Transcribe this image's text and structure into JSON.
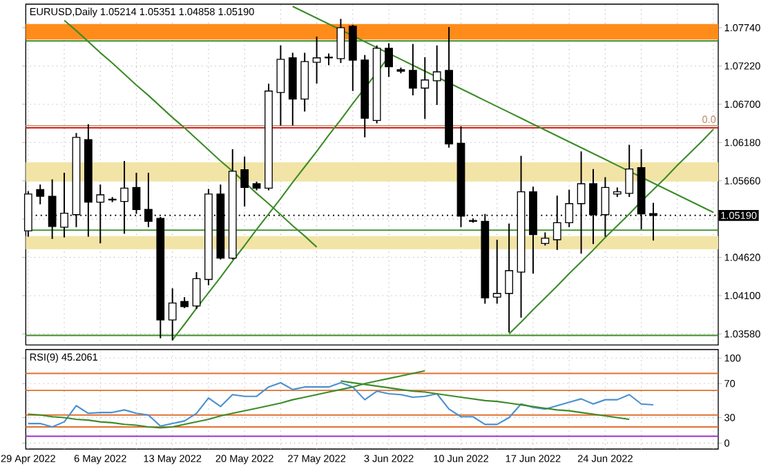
{
  "chart_data": [
    {
      "type": "candlestick",
      "title": "EURUSD,Daily 1.05214 1.05351 1.04858 1.05190",
      "categories": [
        null,
        null,
        null,
        null,
        null,
        null,
        null,
        null,
        null,
        null,
        null,
        null,
        null,
        null,
        null,
        null,
        null,
        null,
        null,
        null,
        null,
        null,
        null,
        null,
        null,
        null,
        null,
        null,
        null,
        null,
        null,
        null,
        null,
        null,
        null,
        null,
        null,
        null,
        null,
        null,
        null,
        null,
        null,
        null,
        null,
        null,
        null,
        null,
        null,
        null,
        null,
        null,
        null,
        null,
        null,
        null,
        null,
        null
      ],
      "ohlc": [
        [
          1.0498,
          1.0551,
          1.0491,
          1.0548
        ],
        [
          1.0554,
          1.056,
          1.0535,
          1.0545
        ],
        [
          1.0545,
          1.0567,
          1.0488,
          1.0504
        ],
        [
          1.0503,
          1.0576,
          1.049,
          1.0522
        ],
        [
          1.052,
          1.063,
          1.0504,
          1.0625
        ],
        [
          1.0622,
          1.0642,
          1.0491,
          1.0537
        ],
        [
          1.0537,
          1.056,
          1.0482,
          1.0547
        ],
        [
          1.054,
          1.0543,
          1.0538,
          1.0541
        ],
        [
          1.0538,
          1.0592,
          1.0495,
          1.0556
        ],
        [
          1.0557,
          1.0576,
          1.0522,
          1.0527
        ],
        [
          1.0527,
          1.0576,
          1.0504,
          1.0511
        ],
        [
          1.0515,
          1.0516,
          1.0353,
          1.0377
        ],
        [
          1.0377,
          1.0419,
          1.035,
          1.04
        ],
        [
          1.0402,
          1.0407,
          1.0394,
          1.0395
        ],
        [
          1.0396,
          1.0441,
          1.0393,
          1.0433
        ],
        [
          1.0432,
          1.0554,
          1.0425,
          1.0548
        ],
        [
          1.0548,
          1.056,
          1.046,
          1.0461
        ],
        [
          1.0461,
          1.0608,
          1.046,
          1.0579
        ],
        [
          1.0581,
          1.0598,
          1.0532,
          1.0557
        ],
        [
          1.0562,
          1.0564,
          1.0554,
          1.0556
        ],
        [
          1.0556,
          1.0697,
          1.0554,
          1.0688
        ],
        [
          1.0686,
          1.0749,
          1.0642,
          1.0731
        ],
        [
          1.0733,
          1.0739,
          1.0642,
          1.0677
        ],
        [
          1.0677,
          1.0739,
          1.0661,
          1.0728
        ],
        [
          1.0727,
          1.0761,
          1.0699,
          1.0733
        ],
        [
          1.0733,
          1.0738,
          1.0724,
          1.0734
        ],
        [
          1.0732,
          1.0785,
          1.0727,
          1.0774
        ],
        [
          1.0776,
          1.0777,
          1.0689,
          1.073
        ],
        [
          1.073,
          1.0736,
          1.0626,
          1.0651
        ],
        [
          1.0648,
          1.0749,
          1.0645,
          1.0746
        ],
        [
          1.0746,
          1.0752,
          1.0708,
          1.0721
        ],
        [
          1.0717,
          1.0719,
          1.0713,
          1.0715
        ],
        [
          1.0716,
          1.0751,
          1.0683,
          1.0692
        ],
        [
          1.0692,
          1.0733,
          1.0651,
          1.0703
        ],
        [
          1.0702,
          1.0749,
          1.067,
          1.0714
        ],
        [
          1.0716,
          1.0774,
          1.0612,
          1.0616
        ],
        [
          1.0617,
          1.0639,
          1.0504,
          1.0518
        ],
        [
          1.0512,
          1.0514,
          1.051,
          1.0511
        ],
        [
          1.0511,
          1.052,
          1.04,
          1.0407
        ],
        [
          1.0408,
          1.0485,
          1.04,
          1.0413
        ],
        [
          1.0413,
          1.0507,
          1.0361,
          1.0444
        ],
        [
          1.0442,
          1.0599,
          1.0381,
          1.0551
        ],
        [
          1.0551,
          1.0557,
          1.0441,
          1.0493
        ],
        [
          1.0481,
          1.0495,
          1.0479,
          1.0488
        ],
        [
          1.0486,
          1.0545,
          1.0473,
          1.0509
        ],
        [
          1.0509,
          1.0553,
          1.0504,
          1.0535
        ],
        [
          1.0535,
          1.0605,
          1.0468,
          1.0562
        ],
        [
          1.0562,
          1.0581,
          1.0481,
          1.052
        ],
        [
          1.052,
          1.057,
          1.0491,
          1.0557
        ],
        [
          1.0548,
          1.0556,
          1.0545,
          1.0551
        ],
        [
          1.0549,
          1.0614,
          1.0545,
          1.0582
        ],
        [
          1.0584,
          1.0608,
          1.0501,
          1.0521
        ],
        [
          1.05214,
          1.05351,
          1.04858,
          1.0519
        ],
        null,
        null,
        null,
        null,
        null
      ],
      "series": [
        {
          "type": "line",
          "color": "#3c8c28",
          "values": [
            null,
            null,
            null,
            1.0784,
            1.077,
            1.0755,
            1.074,
            1.0726,
            1.0711,
            1.0696,
            1.0682,
            1.0667,
            1.0652,
            1.0638,
            1.0623,
            1.0608,
            1.0593,
            1.0579,
            1.0564,
            1.0549,
            1.0535,
            1.052,
            1.0505,
            1.0491,
            1.0476,
            null,
            null,
            null,
            null,
            null,
            null,
            null,
            null,
            null,
            null,
            null,
            null,
            null,
            null,
            null,
            null,
            null,
            null,
            null,
            null,
            null,
            null,
            null,
            null,
            null,
            null,
            null,
            null,
            null,
            null,
            null,
            null,
            null
          ]
        },
        {
          "type": "line",
          "color": "#3c8c28",
          "values": [
            null,
            null,
            null,
            null,
            null,
            null,
            null,
            null,
            null,
            null,
            null,
            null,
            null,
            null,
            null,
            null,
            null,
            null,
            null,
            null,
            null,
            null,
            1.0803,
            1.0795,
            1.0787,
            1.0779,
            1.0771,
            1.0763,
            1.0755,
            1.0747,
            1.0739,
            1.0731,
            1.0723,
            1.0715,
            1.0707,
            1.0699,
            1.0691,
            1.0683,
            1.0675,
            1.0667,
            1.0659,
            1.0651,
            1.0643,
            1.0635,
            1.0627,
            1.0619,
            1.0611,
            1.0603,
            1.0595,
            1.0587,
            1.0579,
            1.0571,
            1.0563,
            1.0555,
            1.0547,
            1.0539,
            1.0531,
            1.0523
          ]
        },
        {
          "type": "line",
          "color": "#3c8c28",
          "values": [
            null,
            null,
            null,
            null,
            null,
            null,
            null,
            null,
            null,
            null,
            null,
            null,
            1.035,
            1.0371,
            1.0393,
            1.0414,
            1.0435,
            1.0457,
            1.0478,
            1.05,
            1.0521,
            1.0542,
            1.0564,
            1.0585,
            1.0606,
            1.0628,
            1.0649,
            1.0671,
            1.0692,
            1.0713,
            1.0735,
            null,
            null,
            null,
            null,
            null,
            null,
            null,
            null,
            null,
            null,
            null,
            null,
            null,
            null,
            null,
            null,
            null,
            null,
            null,
            null,
            null,
            null,
            null,
            null,
            null,
            null,
            null
          ]
        },
        {
          "type": "line",
          "color": "#3c8c28",
          "values": [
            null,
            null,
            null,
            null,
            null,
            null,
            null,
            null,
            null,
            null,
            null,
            null,
            null,
            null,
            null,
            null,
            null,
            null,
            null,
            null,
            null,
            null,
            null,
            null,
            null,
            null,
            null,
            null,
            null,
            null,
            null,
            null,
            null,
            null,
            null,
            null,
            null,
            null,
            null,
            null,
            1.0358,
            1.0374,
            1.0391,
            1.0407,
            1.0423,
            1.044,
            1.0456,
            1.0472,
            1.0489,
            1.0505,
            1.0521,
            1.0538,
            1.0554,
            1.057,
            1.0587,
            1.0603,
            1.0619,
            1.0636
          ]
        }
      ],
      "bands": [
        {
          "axis": "y",
          "from": 1.0758,
          "to": 1.0779,
          "color": "#ff8c1a"
        },
        {
          "axis": "y",
          "from": 1.0565,
          "to": 1.0591,
          "color": "#f2e4a6"
        },
        {
          "axis": "y",
          "from": 1.0473,
          "to": 1.0491,
          "color": "#f2e4a6"
        }
      ],
      "ref_lines": [
        {
          "axis": "y",
          "value": 1.0756,
          "color": "#3c8c28"
        },
        {
          "axis": "y",
          "value": 1.0641,
          "color": "#c8a080"
        },
        {
          "axis": "y",
          "value": 1.0638,
          "color": "#d02020"
        },
        {
          "axis": "y",
          "value": 1.0499,
          "color": "#3c8c28"
        },
        {
          "axis": "y",
          "value": 1.0356,
          "color": "#3c8c28"
        },
        {
          "axis": "y",
          "value": 1.0519,
          "color": "#000000",
          "line_style": "dotted",
          "label": "1.05190"
        }
      ],
      "annotations": [
        "0.0"
      ],
      "ylim": [
        1.0343,
        1.0806
      ],
      "yticks": [
        {
          "value": 1.0774,
          "label": "1.07740"
        },
        {
          "value": 1.0722,
          "label": "1.07220"
        },
        {
          "value": 1.067,
          "label": "1.06700"
        },
        {
          "value": 1.0618,
          "label": "1.06180"
        },
        {
          "value": 1.0566,
          "label": "1.05660"
        },
        {
          "value": 1.0514,
          "label": null
        },
        {
          "value": 1.0462,
          "label": "1.04620"
        },
        {
          "value": 1.041,
          "label": "1.04100"
        },
        {
          "value": 1.0358,
          "label": "1.03580"
        }
      ],
      "tick_labels": "y",
      "grid": true
    },
    {
      "type": "line",
      "title": "RSI(9) 45.2061",
      "categories": [
        "29 Apr 2022",
        null,
        null,
        null,
        null,
        null,
        "6 May 2022",
        null,
        null,
        null,
        null,
        null,
        "13 May 2022",
        null,
        null,
        null,
        null,
        null,
        "20 May 2022",
        null,
        null,
        null,
        null,
        null,
        "27 May 2022",
        null,
        null,
        null,
        null,
        null,
        "3 Jun 2022",
        null,
        null,
        null,
        null,
        null,
        "10 Jun 2022",
        null,
        null,
        null,
        null,
        null,
        "17 Jun 2022",
        null,
        null,
        null,
        null,
        null,
        "24 Jun 2022",
        null,
        null,
        null,
        null,
        null,
        null,
        null,
        null,
        null
      ],
      "series": [
        {
          "color": "#4a90d0",
          "values": [
            23,
            23,
            19,
            25,
            44,
            35,
            36,
            36,
            39,
            35,
            33,
            20,
            23,
            26,
            35,
            53,
            43,
            57,
            55,
            55,
            66,
            71,
            63,
            66,
            66,
            66,
            71,
            66,
            51,
            61,
            58,
            57,
            54,
            55,
            58,
            40,
            31,
            31,
            22,
            22,
            30,
            46,
            42,
            40,
            44,
            48,
            52,
            46,
            51,
            51,
            57,
            46,
            45,
            null,
            null,
            null,
            null,
            null
          ]
        },
        {
          "color": "#3c8c28",
          "values": [
            34,
            33,
            31,
            30,
            28,
            27,
            25,
            24,
            22,
            21,
            19,
            18,
            19,
            22,
            25,
            28,
            32,
            35,
            38,
            41,
            44,
            47,
            51,
            54,
            57,
            60,
            63,
            66,
            70,
            73,
            76,
            79,
            82,
            85,
            null,
            null,
            null,
            null,
            null,
            null,
            null,
            null,
            null,
            null,
            null,
            null,
            null,
            null,
            null,
            null,
            null,
            null,
            null,
            null,
            null,
            null,
            null,
            null
          ]
        },
        {
          "color": "#3c8c28",
          "values": [
            null,
            null,
            null,
            null,
            null,
            null,
            null,
            null,
            null,
            null,
            null,
            null,
            null,
            null,
            null,
            null,
            null,
            null,
            null,
            null,
            null,
            null,
            null,
            null,
            null,
            null,
            73,
            71,
            69,
            67,
            65,
            63,
            61,
            60,
            58,
            56,
            54,
            52,
            50,
            49,
            47,
            45,
            43,
            41,
            39,
            38,
            36,
            34,
            32,
            30,
            28,
            null,
            null,
            null,
            null,
            null,
            null,
            null
          ]
        }
      ],
      "ref_lines": [
        {
          "axis": "y",
          "value": 82,
          "color": "#e07030"
        },
        {
          "axis": "y",
          "value": 62,
          "color": "#e07030"
        },
        {
          "axis": "y",
          "value": 33,
          "color": "#e07030"
        },
        {
          "axis": "y",
          "value": 19,
          "color": "#e07030"
        },
        {
          "axis": "y",
          "value": 8,
          "color": "#9932cc"
        }
      ],
      "ylim": [
        -7,
        110
      ],
      "yticks": [
        0,
        30,
        70,
        100
      ],
      "grid": true
    }
  ]
}
